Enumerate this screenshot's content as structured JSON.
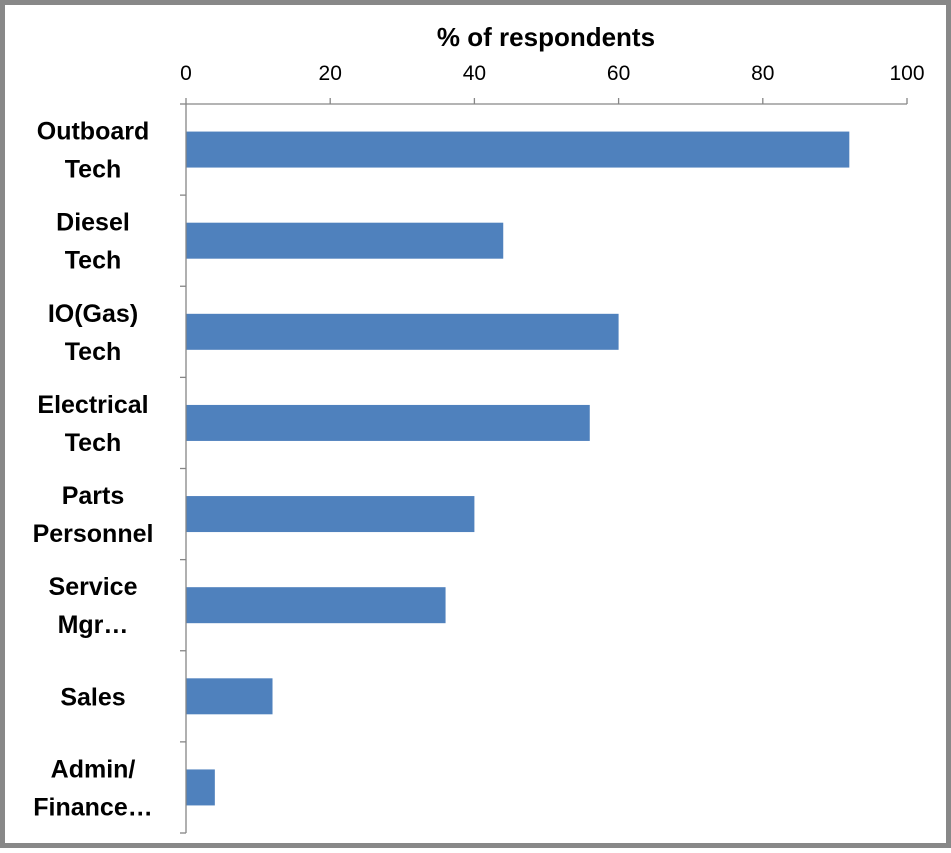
{
  "chart_data": {
    "type": "bar",
    "orientation": "horizontal",
    "title": "",
    "xlabel": "% of respondents",
    "ylabel": "",
    "categories": [
      [
        "Outboard",
        "Tech"
      ],
      [
        "Diesel",
        "Tech"
      ],
      [
        "IO(Gas)",
        "Tech"
      ],
      [
        "Electrical",
        "Tech"
      ],
      [
        "Parts",
        "Personnel"
      ],
      [
        "Service",
        "Mgr…"
      ],
      [
        "Sales"
      ],
      [
        "Admin/",
        "Finance…"
      ]
    ],
    "values": [
      92,
      44,
      60,
      56,
      40,
      36,
      12,
      4
    ],
    "xlim": [
      0,
      100
    ],
    "xticks": [
      0,
      20,
      40,
      60,
      80,
      100
    ],
    "x_axis_position": "top",
    "grid": false,
    "legend": "none",
    "bar_color": "#4F81BD"
  }
}
